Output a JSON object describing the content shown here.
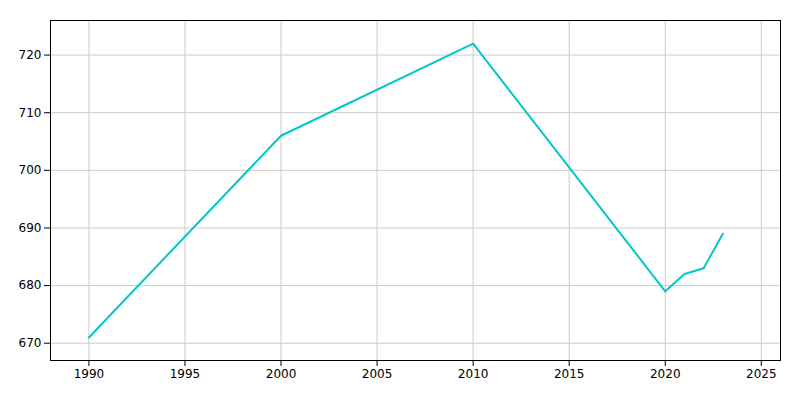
{
  "chart_data": {
    "type": "line",
    "x": [
      1990,
      2000,
      2010,
      2020,
      2021,
      2022,
      2023
    ],
    "values": [
      671,
      706,
      722,
      679,
      682,
      683,
      689
    ],
    "color": "#00c8c8",
    "xlim": [
      1988,
      2026
    ],
    "ylim": [
      667,
      726
    ],
    "xticks": [
      1990,
      1995,
      2000,
      2005,
      2010,
      2015,
      2020,
      2025
    ],
    "yticks": [
      670,
      680,
      690,
      700,
      710,
      720
    ],
    "grid": true
  }
}
